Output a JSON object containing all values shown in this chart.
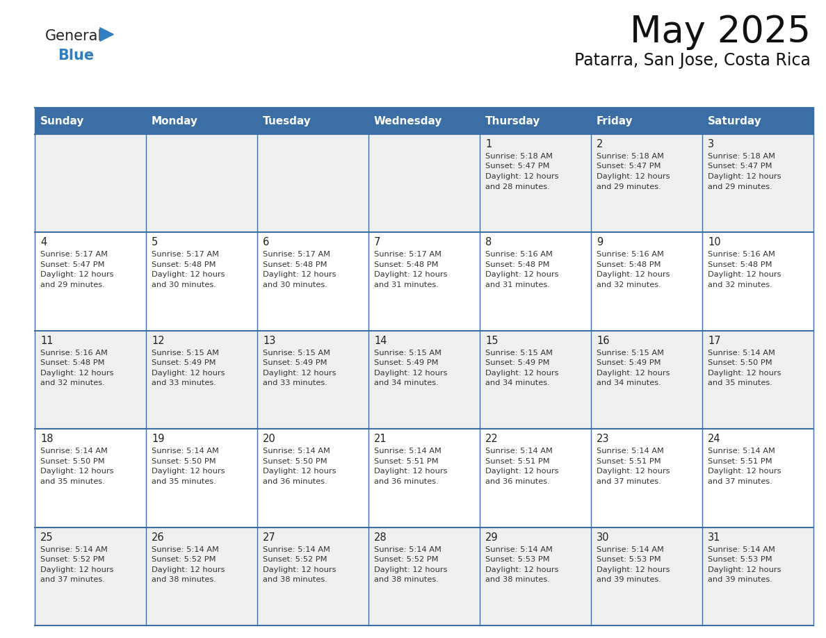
{
  "title": "May 2025",
  "subtitle": "Patarra, San Jose, Costa Rica",
  "days_of_week": [
    "Sunday",
    "Monday",
    "Tuesday",
    "Wednesday",
    "Thursday",
    "Friday",
    "Saturday"
  ],
  "header_bg": "#3a6ea5",
  "header_text": "#ffffff",
  "row0_bg": "#efefef",
  "row1_bg": "#ffffff",
  "row2_bg": "#efefef",
  "row3_bg": "#ffffff",
  "row4_bg": "#efefef",
  "cell_text_color": "#333333",
  "day_num_color": "#222222",
  "line_color": "#3a6ea5",
  "title_color": "#111111",
  "subtitle_color": "#111111",
  "logo_general_color": "#222222",
  "logo_blue_color": "#2e7ec1",
  "calendar_data": [
    [
      null,
      null,
      null,
      null,
      {
        "day": "1",
        "sunrise": "5:18 AM",
        "sunset": "5:47 PM",
        "daylight_h": "12 hours",
        "daylight_m": "and 28 minutes."
      },
      {
        "day": "2",
        "sunrise": "5:18 AM",
        "sunset": "5:47 PM",
        "daylight_h": "12 hours",
        "daylight_m": "and 29 minutes."
      },
      {
        "day": "3",
        "sunrise": "5:18 AM",
        "sunset": "5:47 PM",
        "daylight_h": "12 hours",
        "daylight_m": "and 29 minutes."
      }
    ],
    [
      {
        "day": "4",
        "sunrise": "5:17 AM",
        "sunset": "5:47 PM",
        "daylight_h": "12 hours",
        "daylight_m": "and 29 minutes."
      },
      {
        "day": "5",
        "sunrise": "5:17 AM",
        "sunset": "5:48 PM",
        "daylight_h": "12 hours",
        "daylight_m": "and 30 minutes."
      },
      {
        "day": "6",
        "sunrise": "5:17 AM",
        "sunset": "5:48 PM",
        "daylight_h": "12 hours",
        "daylight_m": "and 30 minutes."
      },
      {
        "day": "7",
        "sunrise": "5:17 AM",
        "sunset": "5:48 PM",
        "daylight_h": "12 hours",
        "daylight_m": "and 31 minutes."
      },
      {
        "day": "8",
        "sunrise": "5:16 AM",
        "sunset": "5:48 PM",
        "daylight_h": "12 hours",
        "daylight_m": "and 31 minutes."
      },
      {
        "day": "9",
        "sunrise": "5:16 AM",
        "sunset": "5:48 PM",
        "daylight_h": "12 hours",
        "daylight_m": "and 32 minutes."
      },
      {
        "day": "10",
        "sunrise": "5:16 AM",
        "sunset": "5:48 PM",
        "daylight_h": "12 hours",
        "daylight_m": "and 32 minutes."
      }
    ],
    [
      {
        "day": "11",
        "sunrise": "5:16 AM",
        "sunset": "5:48 PM",
        "daylight_h": "12 hours",
        "daylight_m": "and 32 minutes."
      },
      {
        "day": "12",
        "sunrise": "5:15 AM",
        "sunset": "5:49 PM",
        "daylight_h": "12 hours",
        "daylight_m": "and 33 minutes."
      },
      {
        "day": "13",
        "sunrise": "5:15 AM",
        "sunset": "5:49 PM",
        "daylight_h": "12 hours",
        "daylight_m": "and 33 minutes."
      },
      {
        "day": "14",
        "sunrise": "5:15 AM",
        "sunset": "5:49 PM",
        "daylight_h": "12 hours",
        "daylight_m": "and 34 minutes."
      },
      {
        "day": "15",
        "sunrise": "5:15 AM",
        "sunset": "5:49 PM",
        "daylight_h": "12 hours",
        "daylight_m": "and 34 minutes."
      },
      {
        "day": "16",
        "sunrise": "5:15 AM",
        "sunset": "5:49 PM",
        "daylight_h": "12 hours",
        "daylight_m": "and 34 minutes."
      },
      {
        "day": "17",
        "sunrise": "5:14 AM",
        "sunset": "5:50 PM",
        "daylight_h": "12 hours",
        "daylight_m": "and 35 minutes."
      }
    ],
    [
      {
        "day": "18",
        "sunrise": "5:14 AM",
        "sunset": "5:50 PM",
        "daylight_h": "12 hours",
        "daylight_m": "and 35 minutes."
      },
      {
        "day": "19",
        "sunrise": "5:14 AM",
        "sunset": "5:50 PM",
        "daylight_h": "12 hours",
        "daylight_m": "and 35 minutes."
      },
      {
        "day": "20",
        "sunrise": "5:14 AM",
        "sunset": "5:50 PM",
        "daylight_h": "12 hours",
        "daylight_m": "and 36 minutes."
      },
      {
        "day": "21",
        "sunrise": "5:14 AM",
        "sunset": "5:51 PM",
        "daylight_h": "12 hours",
        "daylight_m": "and 36 minutes."
      },
      {
        "day": "22",
        "sunrise": "5:14 AM",
        "sunset": "5:51 PM",
        "daylight_h": "12 hours",
        "daylight_m": "and 36 minutes."
      },
      {
        "day": "23",
        "sunrise": "5:14 AM",
        "sunset": "5:51 PM",
        "daylight_h": "12 hours",
        "daylight_m": "and 37 minutes."
      },
      {
        "day": "24",
        "sunrise": "5:14 AM",
        "sunset": "5:51 PM",
        "daylight_h": "12 hours",
        "daylight_m": "and 37 minutes."
      }
    ],
    [
      {
        "day": "25",
        "sunrise": "5:14 AM",
        "sunset": "5:52 PM",
        "daylight_h": "12 hours",
        "daylight_m": "and 37 minutes."
      },
      {
        "day": "26",
        "sunrise": "5:14 AM",
        "sunset": "5:52 PM",
        "daylight_h": "12 hours",
        "daylight_m": "and 38 minutes."
      },
      {
        "day": "27",
        "sunrise": "5:14 AM",
        "sunset": "5:52 PM",
        "daylight_h": "12 hours",
        "daylight_m": "and 38 minutes."
      },
      {
        "day": "28",
        "sunrise": "5:14 AM",
        "sunset": "5:52 PM",
        "daylight_h": "12 hours",
        "daylight_m": "and 38 minutes."
      },
      {
        "day": "29",
        "sunrise": "5:14 AM",
        "sunset": "5:53 PM",
        "daylight_h": "12 hours",
        "daylight_m": "and 38 minutes."
      },
      {
        "day": "30",
        "sunrise": "5:14 AM",
        "sunset": "5:53 PM",
        "daylight_h": "12 hours",
        "daylight_m": "and 39 minutes."
      },
      {
        "day": "31",
        "sunrise": "5:14 AM",
        "sunset": "5:53 PM",
        "daylight_h": "12 hours",
        "daylight_m": "and 39 minutes."
      }
    ]
  ],
  "row_bg_colors": [
    "#efefef",
    "#ffffff",
    "#efefef",
    "#ffffff",
    "#efefef"
  ]
}
